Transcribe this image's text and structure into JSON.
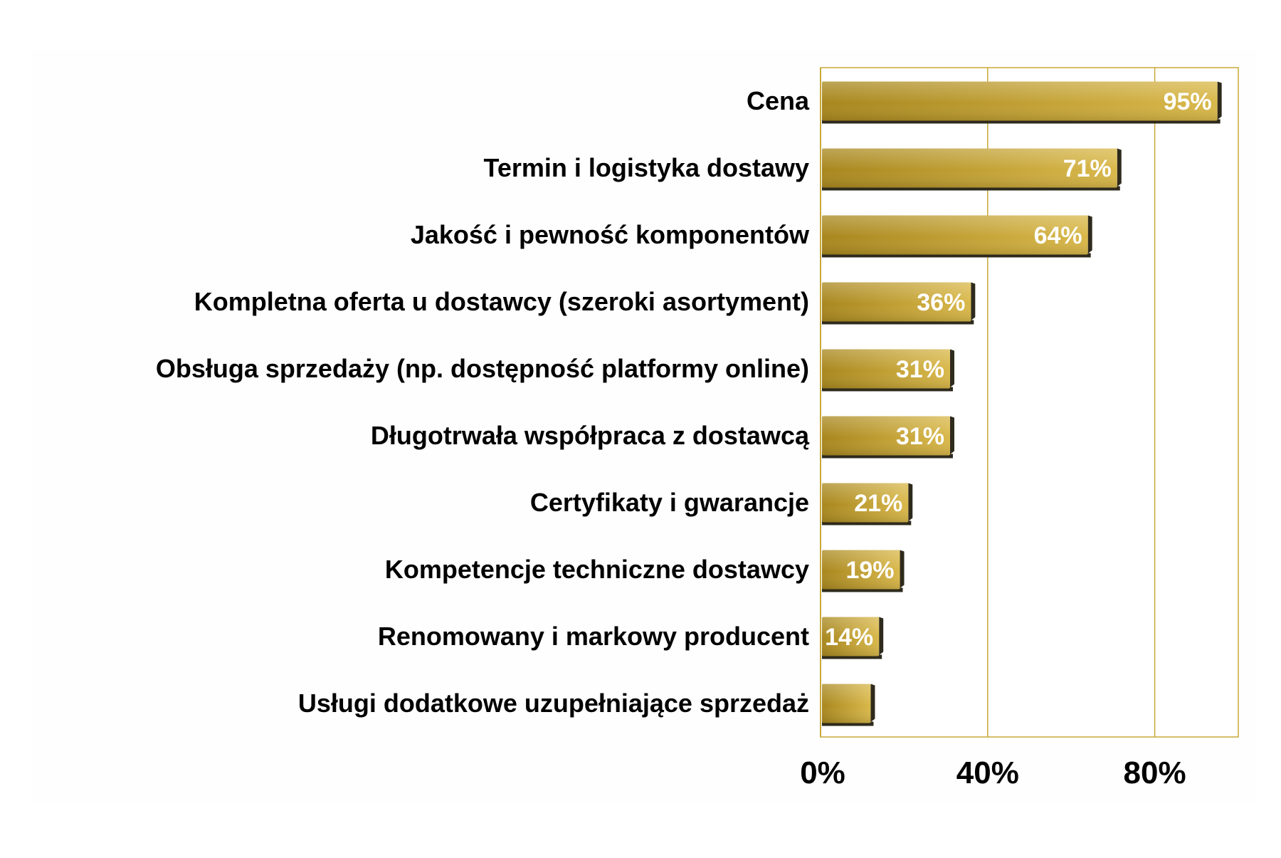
{
  "chart_data": {
    "type": "bar",
    "orientation": "horizontal",
    "title": "",
    "xlabel": "",
    "ylabel": "",
    "categories": [
      "Cena",
      "Termin i logistyka dostawy",
      "Jakość i pewność komponentów",
      "Kompletna oferta u dostawcy (szeroki asortyment)",
      "Obsługa sprzedaży (np. dostępność platformy online)",
      "Długotrwała współpraca z dostawcą",
      "Certyfikaty i gwarancje",
      "Kompetencje techniczne dostawcy",
      "Renomowany i markowy producent",
      "Usługi dodatkowe uzupełniające sprzedaż"
    ],
    "values": [
      95,
      71,
      64,
      36,
      31,
      31,
      21,
      19,
      14,
      12
    ],
    "data_labels": [
      "95%",
      "71%",
      "64%",
      "36%",
      "31%",
      "31%",
      "21%",
      "19%",
      "14%",
      ""
    ],
    "xlim": [
      0,
      100
    ],
    "xticks": [
      0,
      40,
      80
    ],
    "xtick_labels": [
      "0%",
      "40%",
      "80%"
    ],
    "grid": true,
    "legend": "none",
    "colors": {
      "bar_light": "#d9b84a",
      "bar_dark": "#a8871e",
      "bar_shadow": "#2e2a1c",
      "gridline": "#c8a838",
      "plot_background": "#fefefe",
      "label_text": "#000000",
      "data_label_text": "#ffffff"
    }
  }
}
